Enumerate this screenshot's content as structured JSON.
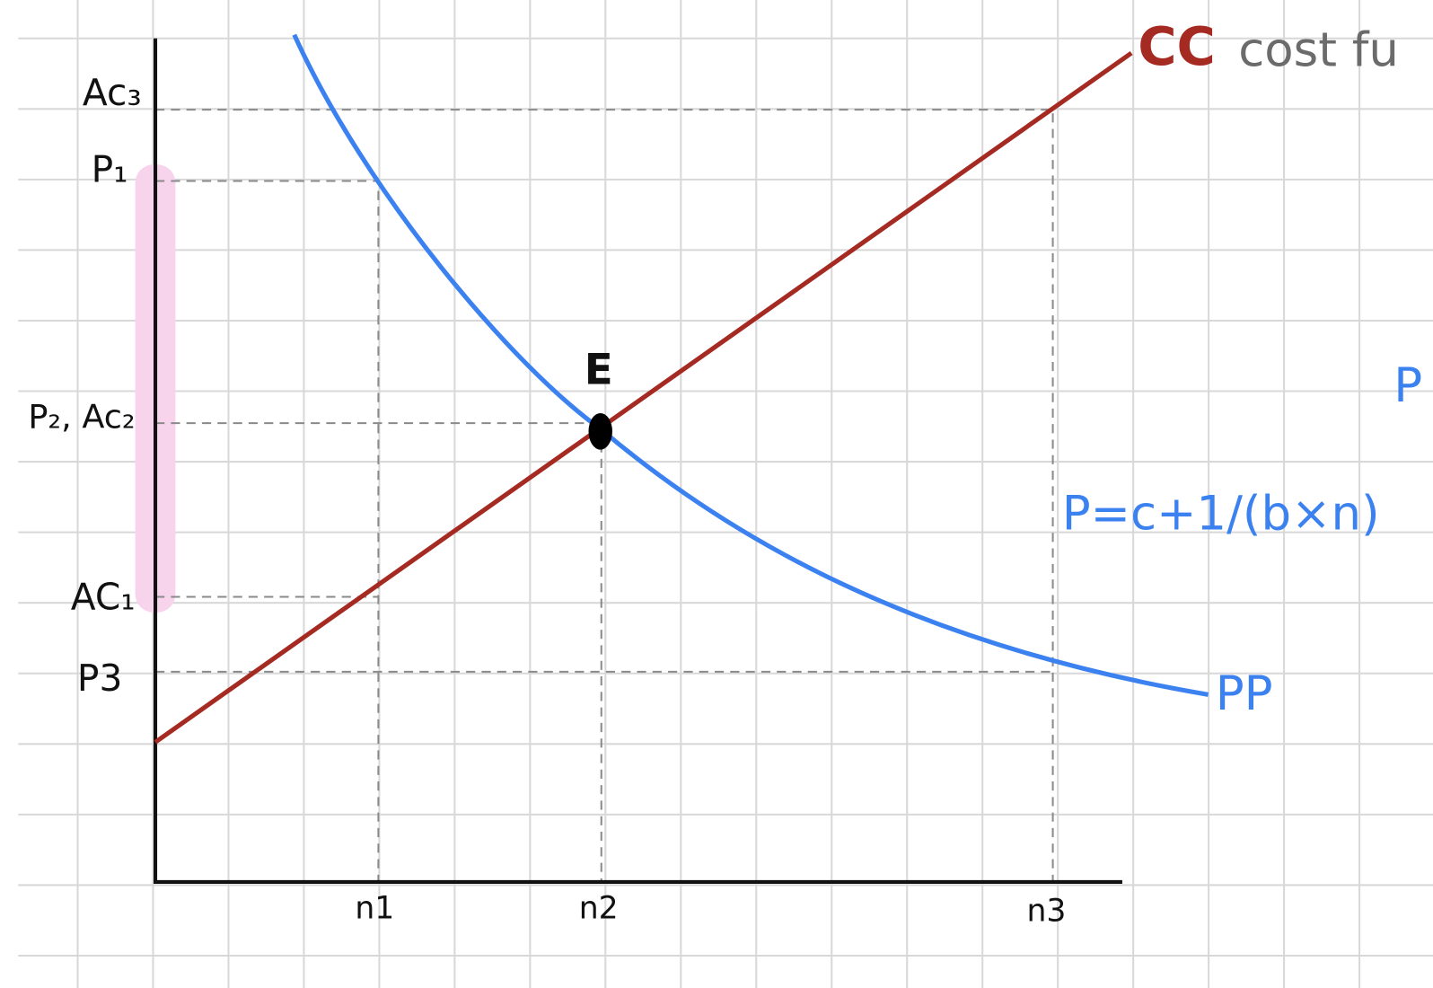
{
  "axis_labels": {
    "y": [
      "Ac₃",
      "P₁",
      "P₂, Ac₂",
      "AC₁",
      "P3"
    ],
    "x": [
      "n1",
      "n2",
      "n3"
    ]
  },
  "point_label": "E",
  "curves": {
    "cc": {
      "label": "CC",
      "note": "cost fu"
    },
    "pp": {
      "label": "PP",
      "formula": "P=c+1/(b×n)",
      "note": "P"
    }
  }
}
